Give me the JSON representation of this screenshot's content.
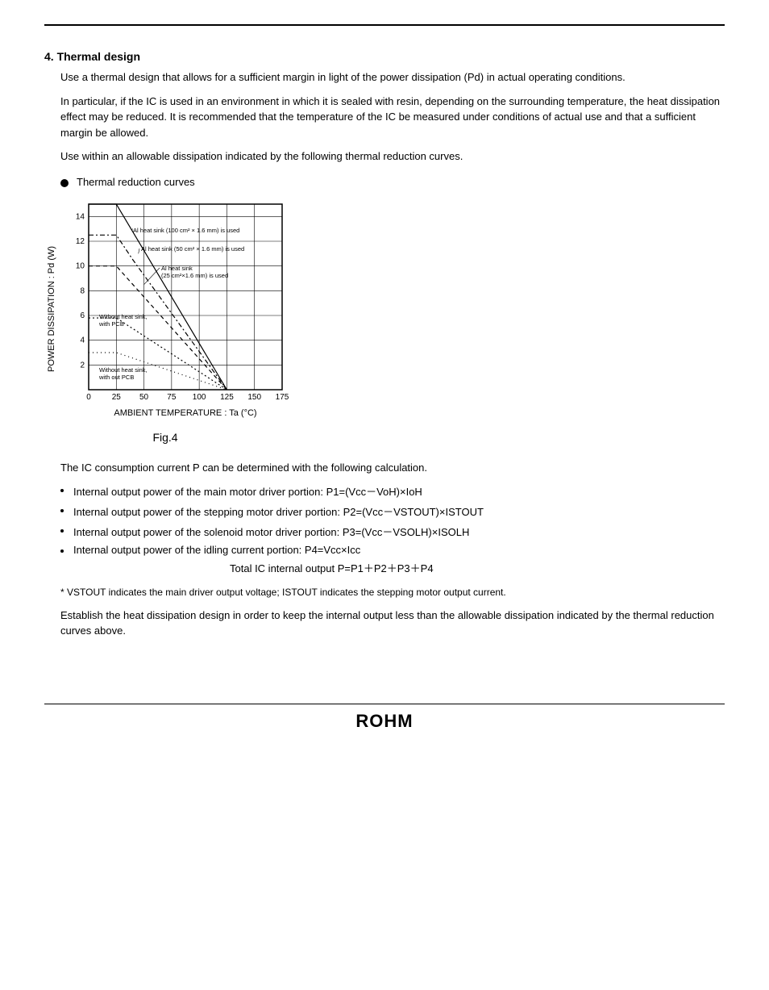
{
  "section1": {
    "title": "4. Thermal design",
    "p1": "Use a thermal design that allows for a sufficient margin in light of the power dissipation (Pd) in actual operating conditions.",
    "p2": "In particular, if the IC is used in an environment in which it is sealed with resin, depending on the surrounding temperature, the heat dissipation effect may be reduced. It is recommended that the temperature of the IC be measured under conditions of actual use and that a sufficient margin be allowed.",
    "p3": "Use within an allowable dissipation indicated by the following thermal reduction curves.",
    "bullet": "Thermal reduction curves"
  },
  "chart": {
    "type": "line",
    "x_label": "AMBIENT  TEMPERATURE : Ta (°C)",
    "y_label": "POWER  DISSIPATION : Pd  (W)",
    "xlim": [
      0,
      175
    ],
    "ylim": [
      0,
      15
    ],
    "xtick_step": 25,
    "ytick_step": 2,
    "background_color": "#ffffff",
    "grid_color": "#000000",
    "series": [
      {
        "label": "Al heat sink (100 cm² × 1.6 mm) is used",
        "style": "solid",
        "color": "#000000",
        "points": [
          [
            0,
            15
          ],
          [
            25,
            15
          ],
          [
            125,
            0
          ]
        ]
      },
      {
        "label": "Al heat sink (50 cm² × 1.6 mm) is used",
        "style": "dashdot",
        "color": "#000000",
        "points": [
          [
            0,
            12.5
          ],
          [
            25,
            12.5
          ],
          [
            40,
            10.5
          ],
          [
            125,
            0
          ]
        ]
      },
      {
        "label": "Al heat sink (25 cm² × 1.6 mm) is used",
        "style": "dashed",
        "color": "#000000",
        "points": [
          [
            0,
            10
          ],
          [
            25,
            10
          ],
          [
            125,
            0
          ]
        ]
      },
      {
        "label": "Without heat sink, with PCB",
        "style": "dotted",
        "color": "#000000",
        "points": [
          [
            0,
            5.8
          ],
          [
            25,
            5.8
          ],
          [
            125,
            0
          ]
        ]
      },
      {
        "label": "Without heat sink, with out PCB",
        "style": "sparse-dot",
        "color": "#000000",
        "points": [
          [
            0,
            3
          ],
          [
            25,
            3
          ],
          [
            125,
            0
          ]
        ]
      }
    ],
    "label_fontsize": 11,
    "tick_fontsize": 10,
    "annotation_fontsize": 8,
    "caption": "Fig.4"
  },
  "consumption": {
    "intro": "The IC consumption current P can be determined with the following calculation.",
    "items": [
      "Internal output power of the main motor driver portion: P1=(Vcc－VoH)×IoH",
      "Internal output power of the stepping motor driver portion: P2=(Vcc－VSTOUT)×ISTOUT",
      "Internal output power of the solenoid motor driver portion: P3=(Vcc－VSOLH)×ISOLH",
      "Internal output power of the idling current portion: P4=Vcc×Icc"
    ],
    "total": "Total IC internal output P=P1＋P2＋P3＋P4",
    "note": "* VSTOUT indicates the main driver output voltage; ISTOUT indicates the stepping motor output current.",
    "closing": "Establish the heat dissipation design in order to keep the internal output less than the allowable dissipation indicated by the thermal reduction curves above."
  }
}
